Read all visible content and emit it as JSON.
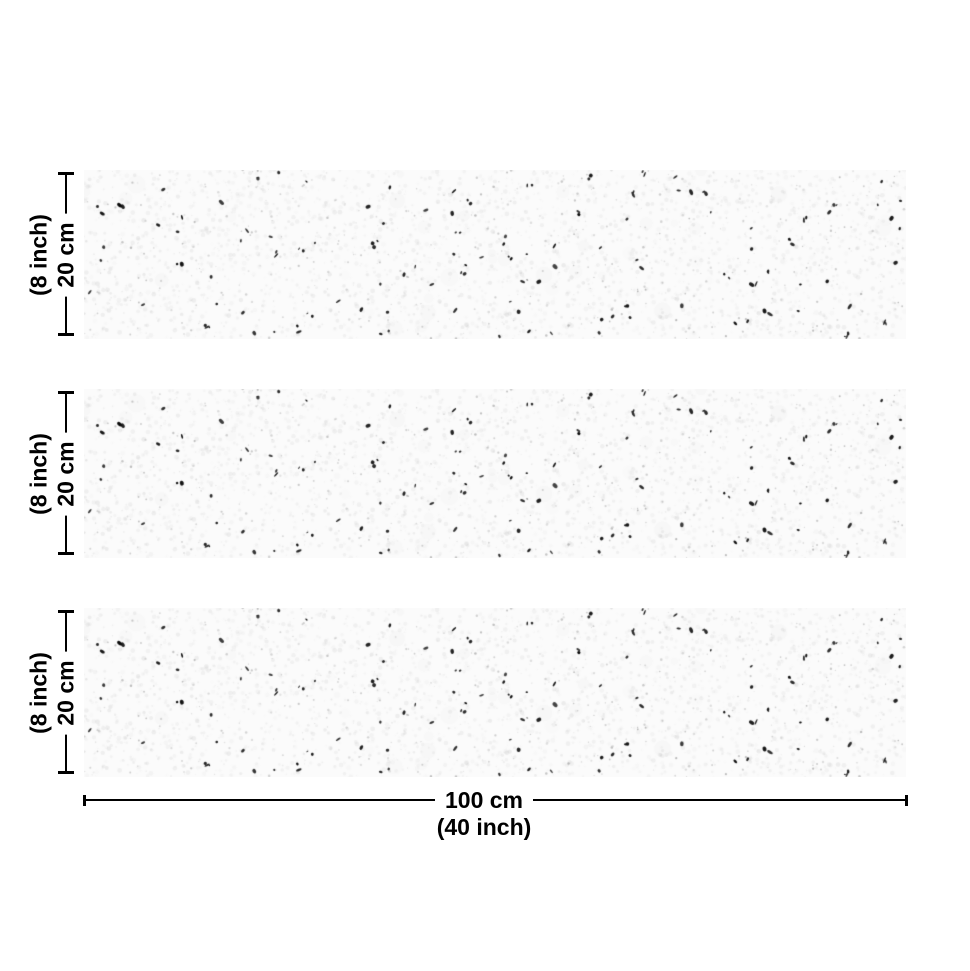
{
  "diagram": {
    "strips": [
      {
        "height_cm_label": "20 cm",
        "height_inch_label": "(8 inch)"
      },
      {
        "height_cm_label": "20 cm",
        "height_inch_label": "(8 inch)"
      },
      {
        "height_cm_label": "20 cm",
        "height_inch_label": "(8 inch)"
      }
    ],
    "width_cm_label": "100 cm",
    "width_inch_label": "(40 inch)"
  },
  "colors": {
    "background": "#ffffff",
    "dimension_line": "#000000",
    "label_text": "#000000",
    "strip_base": "#fbfbfb",
    "speckle_dark": "#1a1a1a",
    "speckle_gray": "#8c8c8c",
    "mottle_gray": "#b4b4b4"
  },
  "texture": {
    "seed": 11,
    "mottle_count": 2600,
    "faint_blob_count": 45,
    "gray_dot_count": 520,
    "black_speck_count": 125
  }
}
